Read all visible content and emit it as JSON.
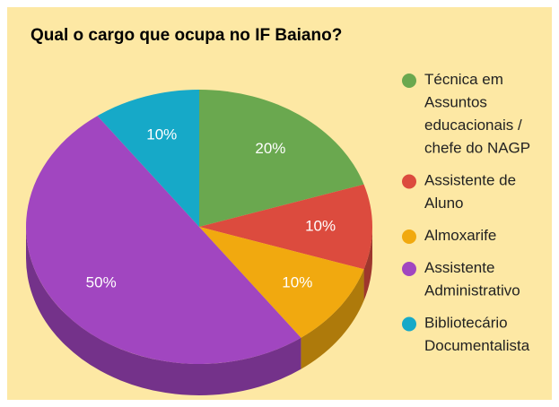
{
  "chart_data": {
    "type": "pie3d",
    "title": "Qual o cargo que ocupa no IF Baiano?",
    "categories": [
      "Técnica em Assuntos educacionais / chefe do NAGP",
      "Assistente de Aluno",
      "Almoxarife",
      "Assistente Administrativo",
      "Bibliotecário Documentalista"
    ],
    "values": [
      20,
      10,
      10,
      50,
      10
    ],
    "value_labels": [
      "20%",
      "10%",
      "10%",
      "50%",
      "10%"
    ],
    "colors": [
      "#6aa84f",
      "#dc4b3e",
      "#f1a90f",
      "#a146c0",
      "#16a9c8"
    ],
    "legend": "right"
  }
}
